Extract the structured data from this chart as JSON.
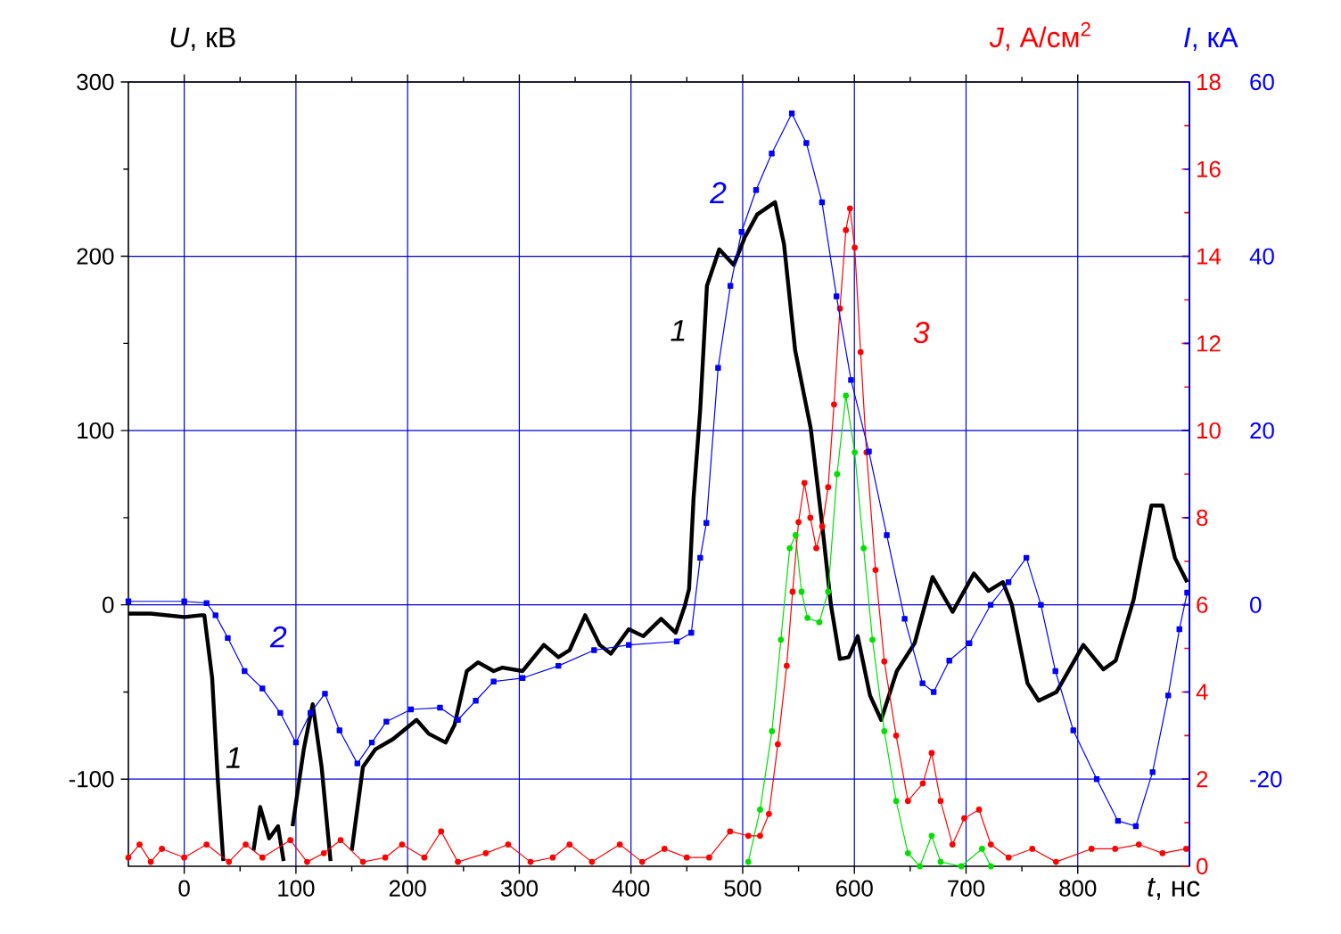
{
  "chart_data": {
    "type": "line",
    "xlabel": "*t*, нс",
    "ylabel": "*U*, кВ",
    "y2label": "*J*, А/см$^{2}$",
    "y3label": "*I*, кА",
    "xlim": [
      -50,
      900
    ],
    "xticks": [
      0,
      100,
      200,
      300,
      400,
      500,
      600,
      700,
      800
    ],
    "ylim": [
      -150,
      300
    ],
    "yticks": [
      -100,
      0,
      100,
      200,
      300
    ],
    "y2lim": [
      0,
      18
    ],
    "y2ticks": [
      0,
      2,
      4,
      6,
      8,
      10,
      12,
      14,
      16,
      18
    ],
    "y3lim": [
      -30,
      60
    ],
    "y3ticks": [
      -20,
      0,
      20,
      40,
      60
    ],
    "grid": true,
    "series": [
      {
        "name": "1",
        "color": "#000000",
        "marker": "none",
        "x": [
          -50,
          -30,
          0,
          15,
          18,
          25,
          30,
          35,
          45,
          62,
          68,
          76,
          84,
          89,
          93,
          97,
          107,
          115,
          123,
          131,
          140,
          150,
          160,
          171,
          187,
          208,
          219,
          234,
          242,
          253,
          263,
          277,
          285,
          303,
          322,
          335,
          345,
          359,
          372,
          382,
          398,
          411,
          427,
          440,
          448,
          452,
          456,
          462,
          468,
          479,
          492,
          502,
          513,
          529,
          537,
          547,
          561,
          571,
          579,
          587,
          595,
          603,
          614,
          624,
          638,
          654,
          670,
          688,
          707,
          720,
          733,
          741,
          755,
          765,
          781,
          805,
          823,
          834,
          850,
          866,
          876,
          887,
          898
        ],
        "values": [
          -5,
          -5,
          -7,
          -6,
          -6,
          -42,
          -100,
          -147,
          null,
          -141,
          -116,
          -134,
          -127,
          -147,
          null,
          -127,
          -83,
          -57,
          -93,
          -147,
          null,
          -141,
          -93,
          -83,
          -77,
          -66,
          -74,
          -79,
          -69,
          -38,
          -33,
          -38,
          -36,
          -38,
          -23,
          -30,
          -26,
          -6,
          -23,
          -28,
          -14,
          -18,
          -8,
          -16,
          -1,
          9,
          61,
          112,
          183,
          204,
          195,
          211,
          224,
          231,
          207,
          146,
          101,
          47,
          0,
          -31,
          -30,
          -18,
          -52,
          -66,
          -38,
          -22,
          16,
          -4,
          18,
          8,
          13,
          0,
          -45,
          -55,
          -50,
          -23,
          -37,
          -32,
          3,
          57,
          57,
          27,
          13
        ]
      },
      {
        "name": "2",
        "color": "#0000ff",
        "axis": "y3",
        "marker": "square",
        "x": [
          -50,
          0,
          20,
          28,
          39,
          54,
          70,
          86,
          100,
          113,
          126,
          139,
          155,
          168,
          181,
          203,
          229,
          245,
          261,
          277,
          303,
          335,
          367,
          398,
          441,
          454,
          462,
          467.5,
          478,
          489,
          499,
          512,
          526,
          544,
          557,
          571,
          584,
          597,
          613,
          629,
          645,
          661,
          671,
          685,
          703,
          722,
          738,
          754,
          767,
          780,
          796,
          817,
          836,
          852,
          867,
          881,
          891,
          898
        ],
        "values": [
          0.4,
          0.4,
          0.2,
          -1.2,
          -3.8,
          -7.6,
          -9.6,
          -12.4,
          -15.8,
          -12.4,
          -10.2,
          -14.4,
          -18.2,
          -15.8,
          -13.4,
          -12,
          -11.8,
          -13.2,
          -11,
          -8.8,
          -8.4,
          -7,
          -5.2,
          -4.6,
          -4.2,
          -3.2,
          5.4,
          9.4,
          27.2,
          36.6,
          42.8,
          47.6,
          51.8,
          56.4,
          53,
          46.2,
          35.4,
          25.8,
          17.6,
          8,
          -1.6,
          -9,
          -10,
          -6.4,
          -4.4,
          0,
          2.6,
          5.4,
          0,
          -7.6,
          -14.4,
          -20,
          -24.8,
          -25.4,
          -19.2,
          -10.4,
          -2.8,
          1.4
        ]
      },
      {
        "color": "#00e000",
        "axis": "y2",
        "marker": "circle",
        "x": [
          505,
          515.6,
          526.2,
          534.2,
          542.1,
          547.4,
          552.7,
          558,
          568.6,
          576.5,
          584.5,
          592.4,
          600.3,
          608.3,
          616.2,
          626.8,
          637.4,
          648,
          658.6,
          669.2,
          677.2,
          695.7,
          714.3,
          722.2
        ],
        "values": [
          0.1,
          1.3,
          3.1,
          5.2,
          7.3,
          7.6,
          6.3,
          5.7,
          5.6,
          6.3,
          9.0,
          10.8,
          9.5,
          7.3,
          5.2,
          3.1,
          1.5,
          0.3,
          0.0,
          0.7,
          0.1,
          0.0,
          0.4,
          0.0
        ]
      },
      {
        "name": "3",
        "color": "#ff0000",
        "axis": "y2",
        "marker": "circle",
        "x": [
          -50,
          -40,
          -30,
          -20,
          0,
          20,
          40,
          55,
          70,
          95,
          110,
          125,
          140,
          160,
          180,
          195,
          215,
          230,
          245,
          270,
          290,
          310,
          330,
          345,
          365,
          390,
          410,
          430,
          450,
          470,
          488.7,
          505,
          515.6,
          523.5,
          531.5,
          539.4,
          544.7,
          550,
          555.3,
          560.6,
          565.9,
          571.2,
          576.5,
          581.8,
          587.1,
          592.4,
          596.1,
          600.3,
          605.6,
          610.9,
          618.9,
          626.8,
          637.4,
          648,
          661.3,
          669.2,
          677.2,
          687.8,
          698.4,
          711.6,
          722.2,
          738.1,
          759.3,
          780.5,
          812.3,
          833.5,
          854.7,
          875.9,
          897.1
        ],
        "values": [
          0.2,
          0.5,
          0.1,
          0.4,
          0.2,
          0.5,
          0.1,
          0.5,
          0.2,
          0.6,
          0.1,
          0.3,
          0.6,
          0.1,
          0.2,
          0.5,
          0.2,
          0.8,
          0.1,
          0.3,
          0.5,
          0.1,
          0.2,
          0.5,
          0.1,
          0.5,
          0.1,
          0.4,
          0.2,
          0.2,
          0.8,
          0.7,
          0.7,
          1.2,
          2.8,
          4.6,
          6.3,
          7.9,
          8.8,
          8.0,
          7.3,
          7.8,
          8.7,
          10.6,
          12.8,
          14.6,
          15.1,
          14.2,
          11.8,
          9.5,
          6.8,
          4.7,
          3.0,
          1.5,
          1.9,
          2.6,
          1.5,
          0.5,
          1.1,
          1.3,
          0.5,
          0.2,
          0.4,
          0.1,
          0.4,
          0.4,
          0.5,
          0.3,
          0.4
        ]
      }
    ]
  }
}
